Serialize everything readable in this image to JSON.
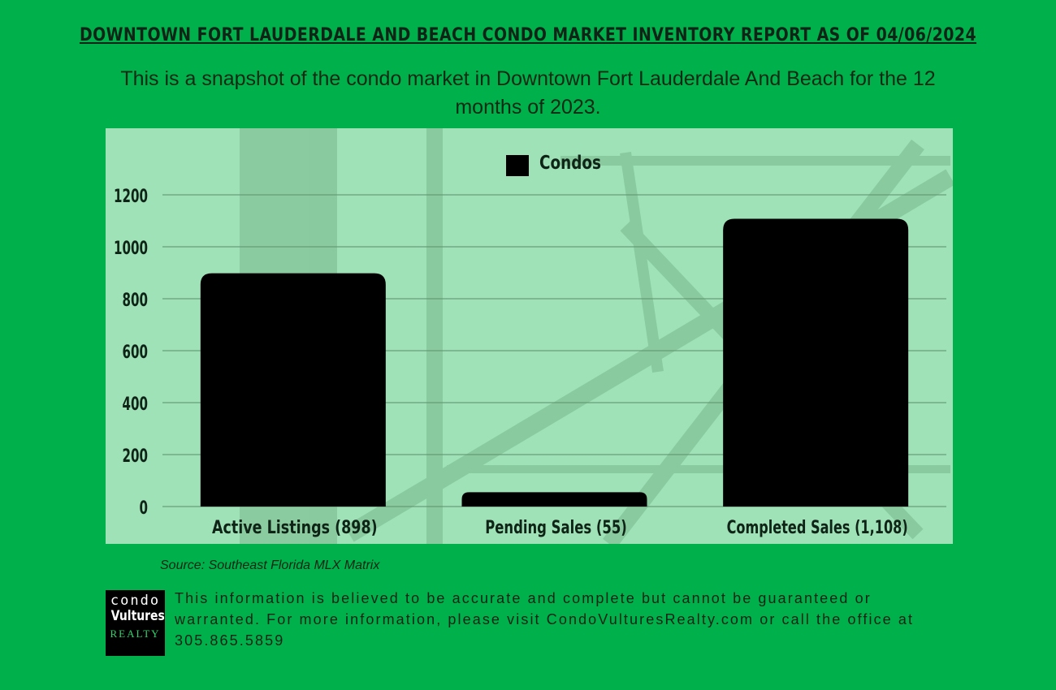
{
  "header": {
    "title": "DOWNTOWN FORT LAUDERDALE AND BEACH CONDO MARKET INVENTORY REPORT AS OF 04/06/2024",
    "subtitle": "This is a snapshot of the condo market in Downtown Fort Lauderdale And Beach for the 12 months of 2023."
  },
  "chart_data": {
    "type": "bar",
    "categories": [
      "Active Listings (898)",
      "Pending Sales (55)",
      "Completed Sales (1,108)"
    ],
    "series": [
      {
        "name": "Condos",
        "values": [
          898,
          55,
          1108
        ],
        "color": "#000000"
      }
    ],
    "ylim": [
      0,
      1200
    ],
    "yticks": [
      0,
      200,
      400,
      600,
      800,
      1000,
      1200
    ],
    "grid": true,
    "legend": "top-center"
  },
  "footer": {
    "source": "Source: Southeast Florida MLX Matrix",
    "logo": {
      "line1": "condo",
      "line2": "Vultures",
      "line3": "REALTY"
    },
    "disclaimer": "This information is believed to be accurate and complete but cannot be guaranteed or warranted. For more information, please visit CondoVulturesRealty.com or call the office at 305.865.5859"
  },
  "colors": {
    "background": "#00b04a",
    "chart_panel": "#9fe2b7",
    "bar": "#000000",
    "text": "#0f2416"
  }
}
